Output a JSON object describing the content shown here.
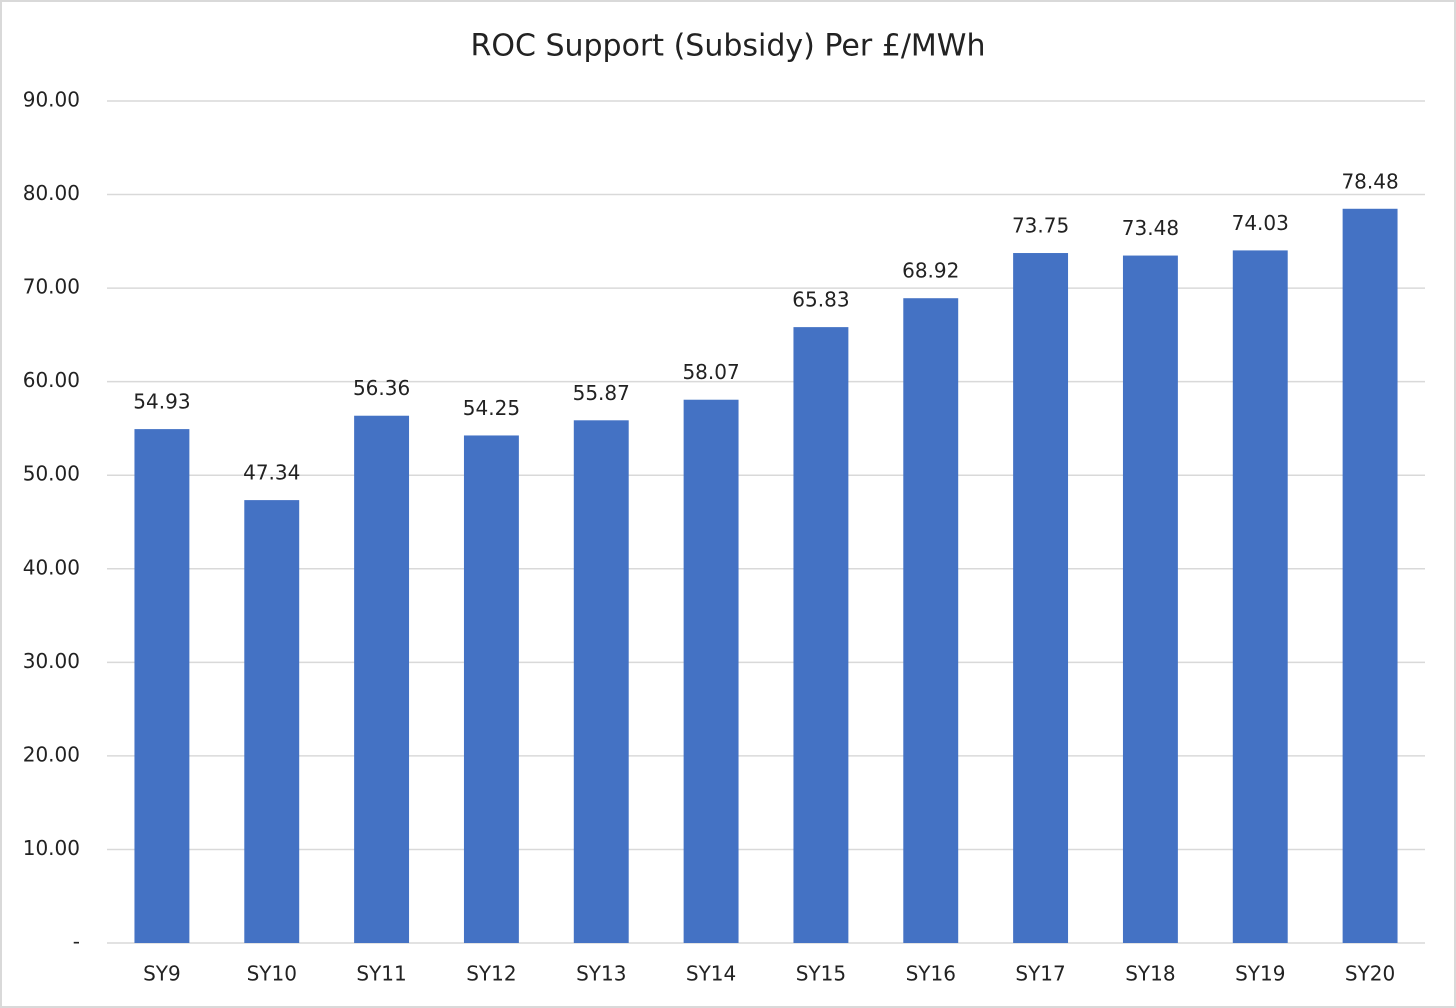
{
  "chart_data": {
    "type": "bar",
    "title": "ROC Support (Subsidy) Per £/MWh",
    "categories": [
      "SY9",
      "SY10",
      "SY11",
      "SY12",
      "SY13",
      "SY14",
      "SY15",
      "SY16",
      "SY17",
      "SY18",
      "SY19",
      "SY20"
    ],
    "values": [
      54.93,
      47.34,
      56.36,
      54.25,
      55.87,
      58.07,
      65.83,
      68.92,
      73.75,
      73.48,
      74.03,
      78.48
    ],
    "color": "#4472c4",
    "ylim": [
      0,
      90
    ],
    "yticks": [
      {
        "value": 0,
        "label": "-"
      },
      {
        "value": 10,
        "label": "10.00"
      },
      {
        "value": 20,
        "label": "20.00"
      },
      {
        "value": 30,
        "label": "30.00"
      },
      {
        "value": 40,
        "label": "40.00"
      },
      {
        "value": 50,
        "label": "50.00"
      },
      {
        "value": 60,
        "label": "60.00"
      },
      {
        "value": 70,
        "label": "70.00"
      },
      {
        "value": 80,
        "label": "80.00"
      },
      {
        "value": 90,
        "label": "90.00"
      }
    ],
    "grid": true
  }
}
